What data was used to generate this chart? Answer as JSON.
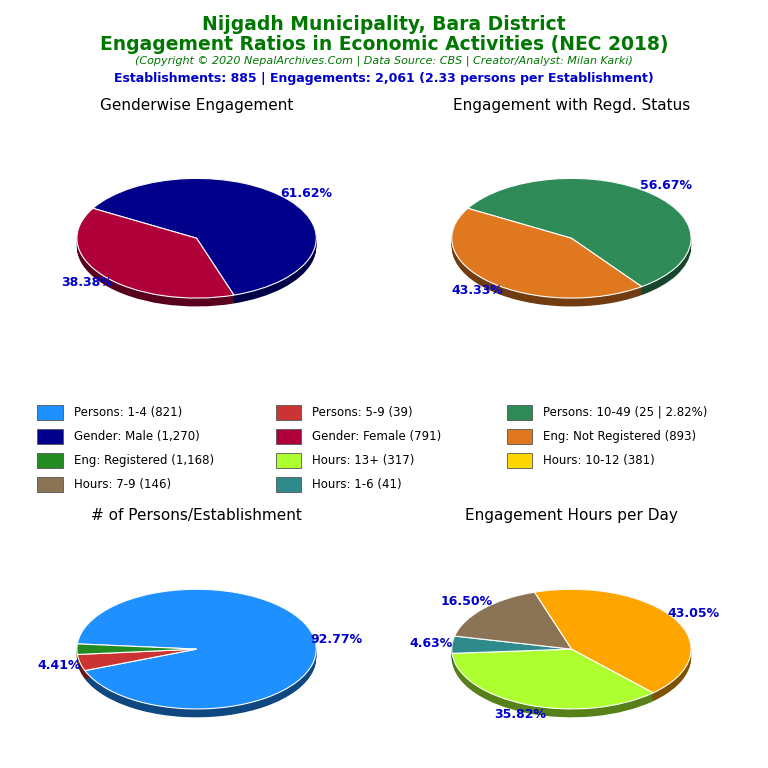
{
  "title_line1": "Nijgadh Municipality, Bara District",
  "title_line2": "Engagement Ratios in Economic Activities (NEC 2018)",
  "subtitle": "(Copyright © 2020 NepalArchives.Com | Data Source: CBS | Creator/Analyst: Milan Karki)",
  "stats_line": "Establishments: 885 | Engagements: 2,061 (2.33 persons per Establishment)",
  "title_color": "#007700",
  "subtitle_color": "#007700",
  "stats_color": "#0000CC",
  "label_color": "#0000CC",
  "gender_title": "Genderwise Engagement",
  "gender_values": [
    61.62,
    38.38
  ],
  "gender_colors": [
    "#00008B",
    "#B0003A"
  ],
  "gender_labels": [
    "61.62%",
    "38.38%"
  ],
  "gender_startangle": 150,
  "regd_title": "Engagement with Regd. Status",
  "regd_values": [
    56.67,
    43.33
  ],
  "regd_colors": [
    "#2E8B57",
    "#E07820"
  ],
  "regd_labels": [
    "56.67%",
    "43.33%"
  ],
  "regd_startangle": 150,
  "persons_title": "# of Persons/Establishment",
  "persons_values": [
    92.77,
    4.41,
    2.82
  ],
  "persons_colors": [
    "#1E90FF",
    "#CC3333",
    "#228B22"
  ],
  "persons_labels": [
    "92.77%",
    "4.41%",
    ""
  ],
  "persons_startangle": 175,
  "hours_title": "Engagement Hours per Day",
  "hours_values": [
    43.05,
    35.82,
    4.63,
    16.5
  ],
  "hours_colors": [
    "#FFA500",
    "#ADFF2F",
    "#2F8B8B",
    "#8B7355"
  ],
  "hours_labels": [
    "43.05%",
    "35.82%",
    "4.63%",
    "16.50%"
  ],
  "hours_startangle": 108,
  "legend_items": [
    {
      "label": "Persons: 1-4 (821)",
      "color": "#1E90FF"
    },
    {
      "label": "Persons: 5-9 (39)",
      "color": "#CC3333"
    },
    {
      "label": "Persons: 10-49 (25 | 2.82%)",
      "color": "#2E8B57"
    },
    {
      "label": "Gender: Male (1,270)",
      "color": "#00008B"
    },
    {
      "label": "Gender: Female (791)",
      "color": "#B0003A"
    },
    {
      "label": "Eng: Not Registered (893)",
      "color": "#E07820"
    },
    {
      "label": "Eng: Registered (1,168)",
      "color": "#228B22"
    },
    {
      "label": "Hours: 13+ (317)",
      "color": "#ADFF2F"
    },
    {
      "label": "Hours: 10-12 (381)",
      "color": "#FFD700"
    },
    {
      "label": "Hours: 7-9 (146)",
      "color": "#8B7355"
    },
    {
      "label": "Hours: 1-6 (41)",
      "color": "#2F8B8B"
    }
  ]
}
